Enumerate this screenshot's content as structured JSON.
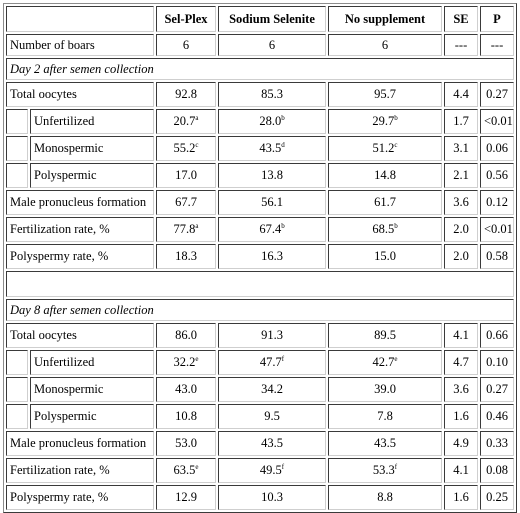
{
  "header": {
    "corner": "",
    "col_selplex": "Sel-Plex",
    "col_sodium": "Sodium Selenite",
    "col_none": "No supplement",
    "col_se": "SE",
    "col_p": "P"
  },
  "boars": {
    "label": "Number of boars",
    "v1": "6",
    "v2": "6",
    "v3": "6",
    "se": "---",
    "p": "---"
  },
  "day2": {
    "title": "Day 2 after semen collection",
    "rows": [
      {
        "label": "Total oocytes",
        "v1": "92.8",
        "s1": "",
        "v2": "85.3",
        "s2": "",
        "v3": "95.7",
        "s3": "",
        "se": "4.4",
        "p": "0.27"
      },
      {
        "label": "Unfertilized",
        "v1": "20.7",
        "s1": "a",
        "v2": "28.0",
        "s2": "b",
        "v3": "29.7",
        "s3": "b",
        "se": "1.7",
        "p": "<0.01"
      },
      {
        "label": "Monospermic",
        "v1": "55.2",
        "s1": "c",
        "v2": "43.5",
        "s2": "d",
        "v3": "51.2",
        "s3": "c",
        "se": "3.1",
        "p": "0.06"
      },
      {
        "label": "Polyspermic",
        "v1": "17.0",
        "s1": "",
        "v2": "13.8",
        "s2": "",
        "v3": "14.8",
        "s3": "",
        "se": "2.1",
        "p": "0.56"
      },
      {
        "label": "Male pronucleus formation",
        "v1": "67.7",
        "s1": "",
        "v2": "56.1",
        "s2": "",
        "v3": "61.7",
        "s3": "",
        "se": "3.6",
        "p": "0.12"
      },
      {
        "label": "Fertilization rate, %",
        "v1": "77.8",
        "s1": "a",
        "v2": "67.4",
        "s2": "b",
        "v3": "68.5",
        "s3": "b",
        "se": "2.0",
        "p": "<0.01"
      },
      {
        "label": "Polyspermy rate, %",
        "v1": "18.3",
        "s1": "",
        "v2": "16.3",
        "s2": "",
        "v3": "15.0",
        "s3": "",
        "se": "2.0",
        "p": "0.58"
      }
    ]
  },
  "day8": {
    "title": "Day 8 after semen collection",
    "rows": [
      {
        "label": "Total oocytes",
        "v1": "86.0",
        "s1": "",
        "v2": "91.3",
        "s2": "",
        "v3": "89.5",
        "s3": "",
        "se": "4.1",
        "p": "0.66"
      },
      {
        "label": "Unfertilized",
        "v1": "32.2",
        "s1": "e",
        "v2": "47.7",
        "s2": "f",
        "v3": "42.7",
        "s3": "e",
        "se": "4.7",
        "p": "0.10"
      },
      {
        "label": "Monospermic",
        "v1": "43.0",
        "s1": "",
        "v2": "34.2",
        "s2": "",
        "v3": "39.0",
        "s3": "",
        "se": "3.6",
        "p": "0.27"
      },
      {
        "label": "Polyspermic",
        "v1": "10.8",
        "s1": "",
        "v2": "9.5",
        "s2": "",
        "v3": "7.8",
        "s3": "",
        "se": "1.6",
        "p": "0.46"
      },
      {
        "label": "Male pronucleus formation",
        "v1": "53.0",
        "s1": "",
        "v2": "43.5",
        "s2": "",
        "v3": "43.5",
        "s3": "",
        "se": "4.9",
        "p": "0.33"
      },
      {
        "label": "Fertilization rate, %",
        "v1": "63.5",
        "s1": "e",
        "v2": "49.5",
        "s2": "f",
        "v3": "53.3",
        "s3": "f",
        "se": "4.1",
        "p": "0.08"
      },
      {
        "label": "Polyspermy rate, %",
        "v1": "12.9",
        "s1": "",
        "v2": "10.3",
        "s2": "",
        "v3": "8.8",
        "s3": "",
        "se": "1.6",
        "p": "0.25"
      }
    ]
  }
}
